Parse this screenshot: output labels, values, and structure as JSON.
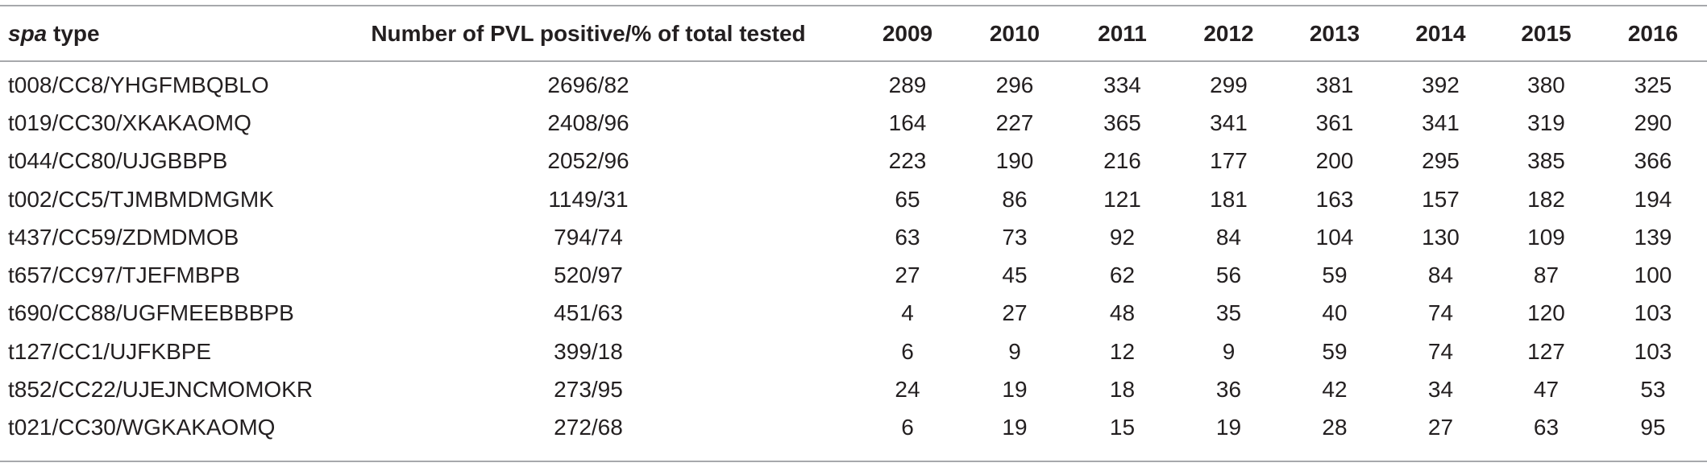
{
  "table": {
    "headers": {
      "spa_em": "spa",
      "spa_rest": " type",
      "pvl": "Number of PVL positive/% of total tested",
      "years": [
        "2009",
        "2010",
        "2011",
        "2012",
        "2013",
        "2014",
        "2015",
        "2016"
      ]
    },
    "rows": [
      {
        "spa": "t008/CC8/YHGFMBQBLO",
        "pvl": "2696/82",
        "values": [
          "289",
          "296",
          "334",
          "299",
          "381",
          "392",
          "380",
          "325"
        ]
      },
      {
        "spa": "t019/CC30/XKAKAOMQ",
        "pvl": "2408/96",
        "values": [
          "164",
          "227",
          "365",
          "341",
          "361",
          "341",
          "319",
          "290"
        ]
      },
      {
        "spa": "t044/CC80/UJGBBPB",
        "pvl": "2052/96",
        "values": [
          "223",
          "190",
          "216",
          "177",
          "200",
          "295",
          "385",
          "366"
        ]
      },
      {
        "spa": "t002/CC5/TJMBMDMGMK",
        "pvl": "1149/31",
        "values": [
          "65",
          "86",
          "121",
          "181",
          "163",
          "157",
          "182",
          "194"
        ]
      },
      {
        "spa": "t437/CC59/ZDMDMOB",
        "pvl": "794/74",
        "values": [
          "63",
          "73",
          "92",
          "84",
          "104",
          "130",
          "109",
          "139"
        ]
      },
      {
        "spa": "t657/CC97/TJEFMBPB",
        "pvl": "520/97",
        "values": [
          "27",
          "45",
          "62",
          "56",
          "59",
          "84",
          "87",
          "100"
        ]
      },
      {
        "spa": "t690/CC88/UGFMEEBBBPB",
        "pvl": "451/63",
        "values": [
          "4",
          "27",
          "48",
          "35",
          "40",
          "74",
          "120",
          "103"
        ]
      },
      {
        "spa": "t127/CC1/UJFKBPE",
        "pvl": "399/18",
        "values": [
          "6",
          "9",
          "12",
          "9",
          "59",
          "74",
          "127",
          "103"
        ]
      },
      {
        "spa": "t852/CC22/UJEJNCMOMOKR",
        "pvl": "273/95",
        "values": [
          "24",
          "19",
          "18",
          "36",
          "42",
          "34",
          "47",
          "53"
        ]
      },
      {
        "spa": "t021/CC30/WGKAKAOMQ",
        "pvl": "272/68",
        "values": [
          "6",
          "19",
          "15",
          "19",
          "28",
          "27",
          "63",
          "95"
        ]
      }
    ]
  }
}
